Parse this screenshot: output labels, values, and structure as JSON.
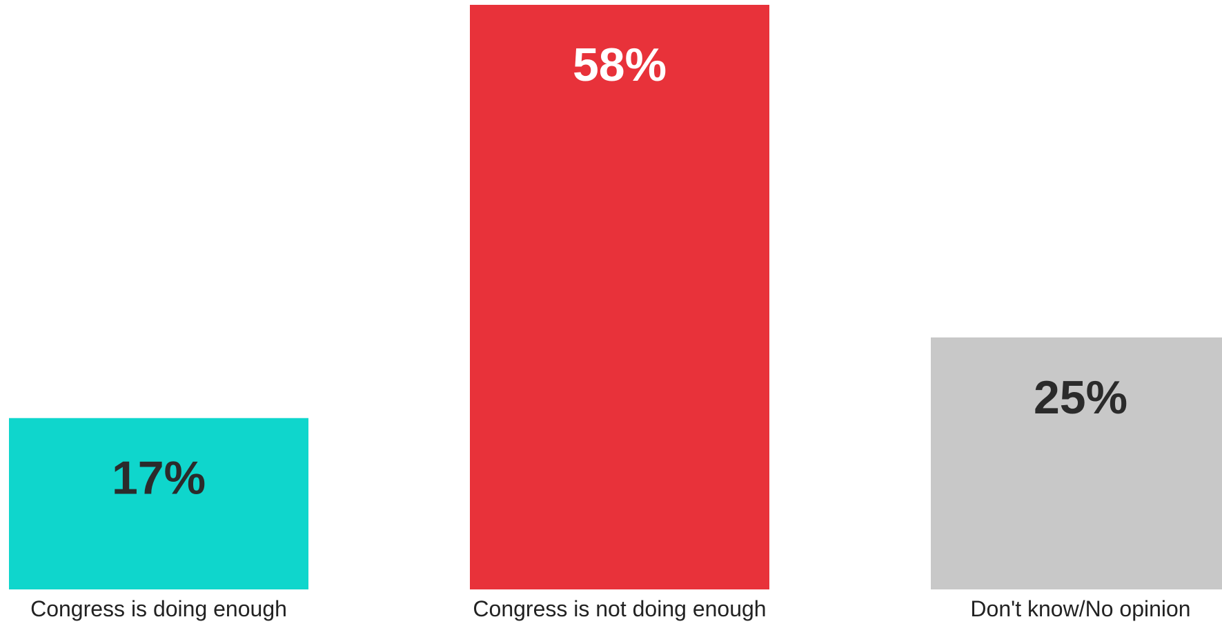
{
  "chart_data": {
    "type": "bar",
    "categories": [
      "Congress is doing enough",
      "Congress is not doing enough",
      "Don't know/No opinion"
    ],
    "values": [
      17,
      58,
      25
    ],
    "value_labels": [
      "17%",
      "58%",
      "25%"
    ],
    "unit": "%",
    "colors": [
      "#0fd6cc",
      "#e8323a",
      "#c8c8c8"
    ],
    "label_colors": [
      "#2b2b2b",
      "#ffffff",
      "#2b2b2b"
    ],
    "title": "",
    "xlabel": "",
    "ylabel": "",
    "ylim": [
      0,
      58
    ],
    "grid": false,
    "legend": "none"
  }
}
